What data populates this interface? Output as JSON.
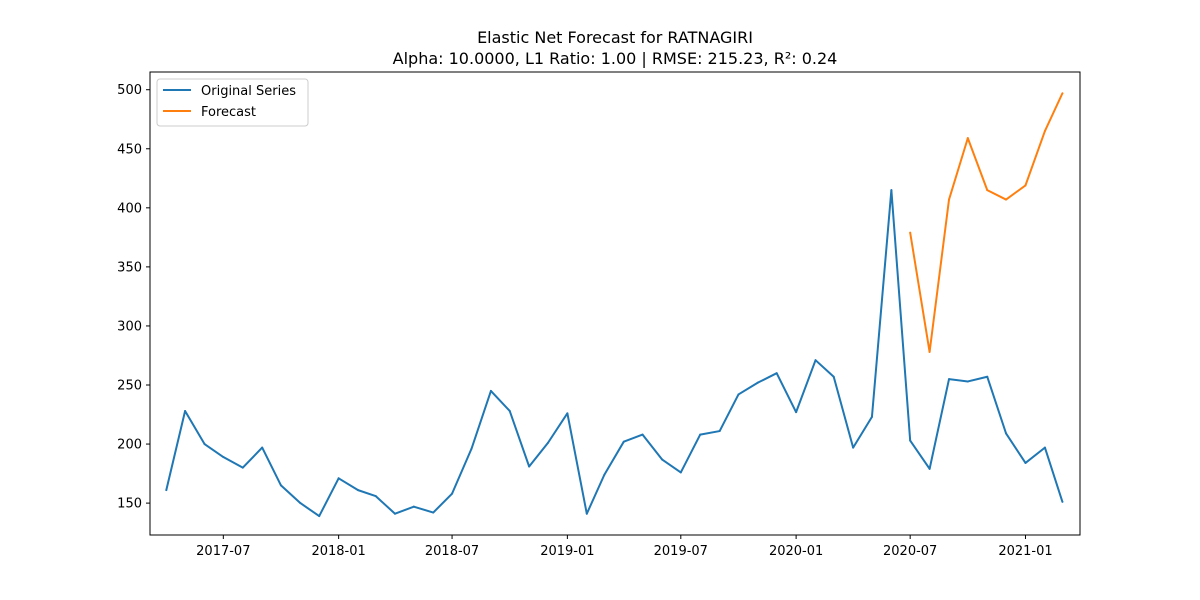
{
  "chart_data": {
    "type": "line",
    "title": "Elastic Net Forecast for RATNAGIRI",
    "subtitle": "Alpha: 10.0000, L1 Ratio: 1.00 | RMSE: 215.23, R²: 0.24",
    "xlabel": "",
    "ylabel": "",
    "xlim": [
      "2017-03-06",
      "2021-03-29"
    ],
    "ylim": [
      123,
      515
    ],
    "x_ticks": [
      "2017-07",
      "2018-01",
      "2018-07",
      "2019-01",
      "2019-07",
      "2020-01",
      "2020-07",
      "2021-01"
    ],
    "y_ticks": [
      150,
      200,
      250,
      300,
      350,
      400,
      450,
      500
    ],
    "grid": false,
    "legend_position": "top-left",
    "series": [
      {
        "name": "Original Series",
        "color": "#1f77b4",
        "points": [
          [
            "2017-04",
            161
          ],
          [
            "2017-05",
            228
          ],
          [
            "2017-06",
            200
          ],
          [
            "2017-07",
            189
          ],
          [
            "2017-08",
            180
          ],
          [
            "2017-09",
            197
          ],
          [
            "2017-10",
            165
          ],
          [
            "2017-11",
            150
          ],
          [
            "2017-12",
            139
          ],
          [
            "2018-01",
            171
          ],
          [
            "2018-02",
            161
          ],
          [
            "2018-03",
            156
          ],
          [
            "2018-04",
            141
          ],
          [
            "2018-05",
            147
          ],
          [
            "2018-06",
            142
          ],
          [
            "2018-07",
            158
          ],
          [
            "2018-08",
            196
          ],
          [
            "2018-09",
            245
          ],
          [
            "2018-10",
            228
          ],
          [
            "2018-11",
            181
          ],
          [
            "2018-12",
            201
          ],
          [
            "2019-01",
            226
          ],
          [
            "2019-02",
            141
          ],
          [
            "2019-03",
            174
          ],
          [
            "2019-04",
            202
          ],
          [
            "2019-05",
            208
          ],
          [
            "2019-06",
            187
          ],
          [
            "2019-07",
            176
          ],
          [
            "2019-08",
            208
          ],
          [
            "2019-09",
            211
          ],
          [
            "2019-10",
            242
          ],
          [
            "2019-11",
            252
          ],
          [
            "2019-12",
            260
          ],
          [
            "2020-01",
            227
          ],
          [
            "2020-02",
            271
          ],
          [
            "2020-03",
            257
          ],
          [
            "2020-04",
            197
          ],
          [
            "2020-05",
            223
          ],
          [
            "2020-06",
            415
          ],
          [
            "2020-07",
            203
          ],
          [
            "2020-08",
            179
          ],
          [
            "2020-09",
            255
          ],
          [
            "2020-10",
            253
          ],
          [
            "2020-11",
            257
          ],
          [
            "2020-12",
            209
          ],
          [
            "2021-01",
            184
          ],
          [
            "2021-02",
            197
          ],
          [
            "2021-03",
            151
          ]
        ]
      },
      {
        "name": "Forecast",
        "color": "#ff7f0e",
        "points": [
          [
            "2020-07",
            379
          ],
          [
            "2020-08",
            278
          ],
          [
            "2020-09",
            407
          ],
          [
            "2020-10",
            459
          ],
          [
            "2020-11",
            415
          ],
          [
            "2020-12",
            407
          ],
          [
            "2021-01",
            419
          ],
          [
            "2021-02",
            465
          ],
          [
            "2021-03",
            497
          ]
        ]
      }
    ]
  }
}
